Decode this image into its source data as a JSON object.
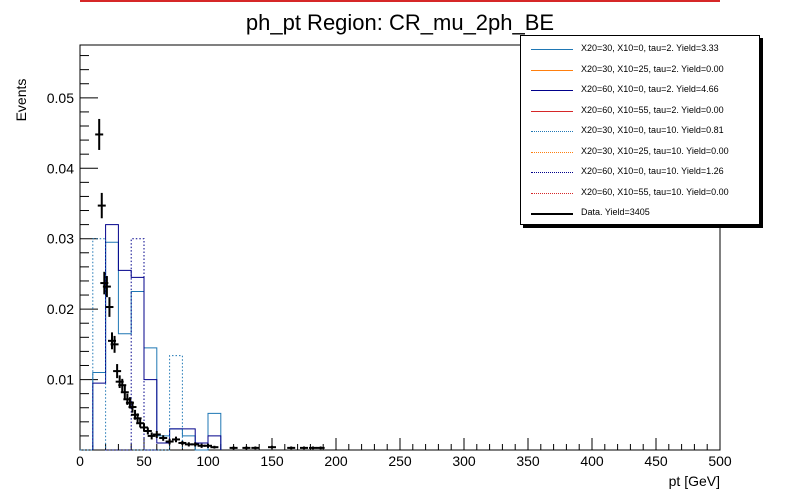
{
  "chart_data": {
    "type": "histogram",
    "title": "ph_pt Region: CR_mu_2ph_BE",
    "xlabel": "pt [GeV]",
    "ylabel": "Events",
    "xlim": [
      0,
      500
    ],
    "ylim": [
      0,
      0.0575
    ],
    "x_ticks": [
      0,
      50,
      100,
      150,
      200,
      250,
      300,
      350,
      400,
      450,
      500
    ],
    "y_ticks": [
      0.01,
      0.02,
      0.03,
      0.04,
      0.05
    ],
    "y_tick_labels": [
      "0.01",
      "0.02",
      "0.03",
      "0.04",
      "0.05"
    ],
    "legend_position": "top-right",
    "grid": false,
    "bin_edges": [
      0,
      10,
      20,
      30,
      40,
      50,
      60,
      70,
      80,
      90,
      100,
      110
    ],
    "series": [
      {
        "name": "X20=30, X10=0, tau=2. Yield=3.33",
        "color": "#1f77b4",
        "style": "solid",
        "bin_edges": [
          10,
          20,
          30,
          40,
          50,
          60,
          70,
          80,
          90,
          100,
          110
        ],
        "values": [
          0.011,
          0.0295,
          0.0165,
          0.0225,
          0.0145,
          0.002,
          0.003,
          0.002,
          0.0,
          0.0052
        ]
      },
      {
        "name": "X20=30, X10=25, tau=2. Yield=0.00",
        "color": "#ff7f0e",
        "style": "solid",
        "bin_edges": [],
        "values": []
      },
      {
        "name": "X20=60, X10=0, tau=2. Yield=4.66",
        "color": "#00008b",
        "style": "solid",
        "bin_edges": [
          10,
          20,
          30,
          40,
          50,
          60,
          70,
          80,
          90,
          100,
          110
        ],
        "values": [
          0.0095,
          0.032,
          0.0255,
          0.0245,
          0.01,
          0.001,
          0.003,
          0.003,
          0.001,
          0.002
        ]
      },
      {
        "name": "X20=60, X10=55, tau=2. Yield=0.00",
        "color": "#d62728",
        "style": "solid",
        "bin_edges": [],
        "values": []
      },
      {
        "name": "X20=30, X10=0, tau=10. Yield=0.81",
        "color": "#1f77b4",
        "style": "dotted",
        "bin_edges": [
          0,
          10,
          20,
          30,
          40,
          50,
          60,
          70,
          80
        ],
        "values": [
          0.0,
          0.03,
          0.0,
          0.0,
          0.0,
          0.0,
          0.0,
          0.0134
        ]
      },
      {
        "name": "X20=30, X10=25, tau=10. Yield=0.00",
        "color": "#ff7f0e",
        "style": "dotted",
        "bin_edges": [],
        "values": []
      },
      {
        "name": "X20=60, X10=0, tau=10. Yield=1.26",
        "color": "#00008b",
        "style": "dotted",
        "bin_edges": [
          20,
          30,
          40,
          50,
          60
        ],
        "values": [
          0.0,
          0.0,
          0.03,
          0.0
        ]
      },
      {
        "name": "X20=60, X10=55, tau=10. Yield=0.00",
        "color": "#d62728",
        "style": "dotted",
        "bin_edges": [],
        "values": []
      },
      {
        "name": "Data. Yield=3405",
        "color": "#000000",
        "style": "points",
        "x": [
          15,
          17,
          19,
          21,
          23,
          25,
          27,
          29,
          31,
          33,
          35,
          37,
          39,
          41,
          43,
          45,
          47,
          50,
          53,
          56,
          60,
          65,
          70,
          75,
          80,
          85,
          90,
          95,
          100,
          105,
          120,
          130,
          137,
          150,
          165,
          175,
          182,
          188
        ],
        "y": [
          0.0448,
          0.0347,
          0.0237,
          0.0232,
          0.0203,
          0.0155,
          0.015,
          0.0112,
          0.0097,
          0.0092,
          0.0082,
          0.0072,
          0.0067,
          0.0061,
          0.005,
          0.0045,
          0.0038,
          0.0032,
          0.0027,
          0.002,
          0.0022,
          0.0017,
          0.0012,
          0.0015,
          0.001,
          0.0008,
          0.0008,
          0.0006,
          0.0006,
          0.0004,
          0.0003,
          0.0003,
          0.0003,
          0.0004,
          0.0003,
          0.0003,
          0.0003,
          0.0003
        ],
        "y_err": [
          0.0022,
          0.0018,
          0.0016,
          0.0015,
          0.0014,
          0.0012,
          0.0012,
          0.001,
          0.0009,
          0.0009,
          0.0009,
          0.0008,
          0.0008,
          0.0008,
          0.0007,
          0.0007,
          0.0006,
          0.0006,
          0.0005,
          0.0005,
          0.0005,
          0.0004,
          0.0004,
          0.0004,
          0.0003,
          0.0003,
          0.0003,
          0.0003,
          0.0003,
          0.0002,
          0.0002,
          0.0002,
          0.0002,
          0.0002,
          0.0002,
          0.0002,
          0.0002,
          0.0002
        ]
      }
    ]
  }
}
